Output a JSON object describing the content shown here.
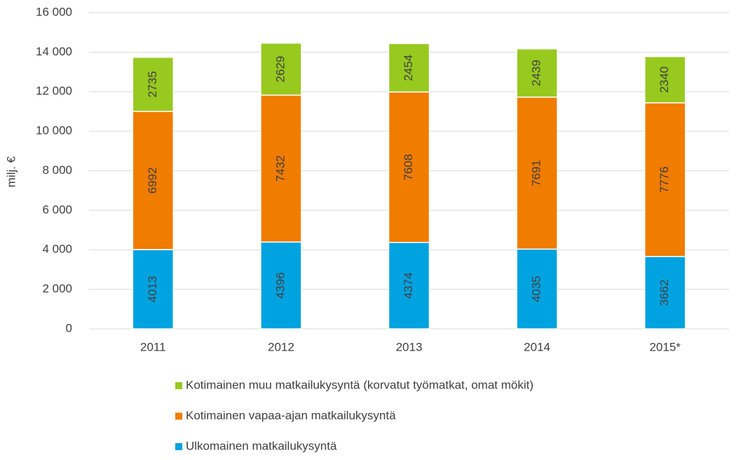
{
  "chart_data": {
    "type": "stacked_bar",
    "ylabel": "milj. €",
    "categories": [
      "2011",
      "2012",
      "2013",
      "2014",
      "2015*"
    ],
    "series": [
      {
        "name": "Ulkomainen matkailukysyntä",
        "color": "#00a3e0",
        "values": [
          4013,
          4396,
          4374,
          4035,
          3662
        ]
      },
      {
        "name": "Kotimainen vapaa-ajan matkailukysyntä",
        "color": "#f07c00",
        "values": [
          6992,
          7432,
          7608,
          7691,
          7776
        ]
      },
      {
        "name": "Kotimainen muu matkailukysyntä (korvatut työmatkat, omat mökit)",
        "color": "#97c91f",
        "values": [
          2735,
          2629,
          2454,
          2439,
          2340
        ]
      }
    ],
    "ylim": [
      0,
      16000
    ],
    "yticks": [
      0,
      {
        "value": 2000,
        "label": "2 000"
      },
      {
        "value": 4000,
        "label": "4 000"
      },
      {
        "value": 6000,
        "label": "6 000"
      },
      {
        "value": 8000,
        "label": "8 000"
      },
      {
        "value": 10000,
        "label": "10 000"
      },
      {
        "value": 12000,
        "label": "12 000"
      },
      {
        "value": 14000,
        "label": "14 000"
      },
      {
        "value": 16000,
        "label": "16 000"
      }
    ],
    "grid": true,
    "legend": "bottom"
  }
}
